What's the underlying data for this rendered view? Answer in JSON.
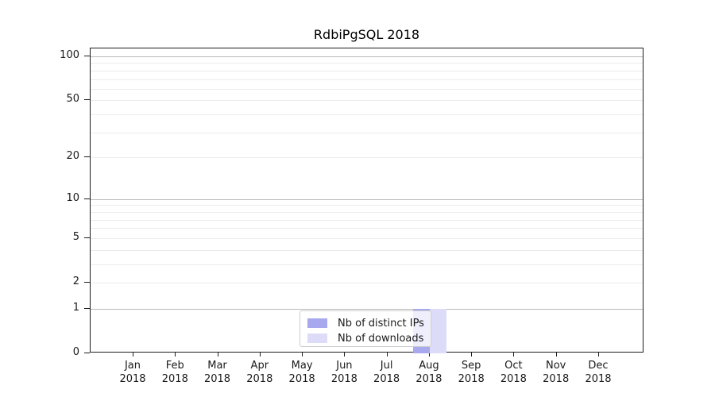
{
  "chart_data": {
    "type": "bar",
    "title": "RdbiPgSQL 2018",
    "x_categories": [
      "Jan",
      "Feb",
      "Mar",
      "Apr",
      "May",
      "Jun",
      "Jul",
      "Aug",
      "Sep",
      "Oct",
      "Nov",
      "Dec"
    ],
    "x_year": "2018",
    "series": [
      {
        "name": "Nb of distinct IPs",
        "color": "#a8a8ee",
        "values": [
          0,
          0,
          0,
          0,
          0,
          0,
          0,
          1,
          0,
          0,
          0,
          0
        ]
      },
      {
        "name": "Nb of downloads",
        "color": "#dcdcf8",
        "values": [
          0,
          0,
          0,
          0,
          0,
          0,
          0,
          1,
          0,
          0,
          0,
          0
        ]
      }
    ],
    "yscale": "log1p",
    "ylim": [
      0,
      113
    ],
    "y_ticks": [
      0,
      1,
      2,
      5,
      10,
      20,
      50,
      100
    ],
    "y_major_gridlines": [
      1,
      10,
      100
    ],
    "y_minor_gridlines": [
      2,
      3,
      4,
      5,
      6,
      7,
      8,
      9,
      20,
      30,
      40,
      50,
      60,
      70,
      80,
      90
    ],
    "legend_position": "lower center",
    "colors": {
      "major_grid": "#b9b9b9",
      "minor_grid": "#ececec",
      "spine": "#1c1c1c",
      "background": "#ffffff"
    }
  }
}
